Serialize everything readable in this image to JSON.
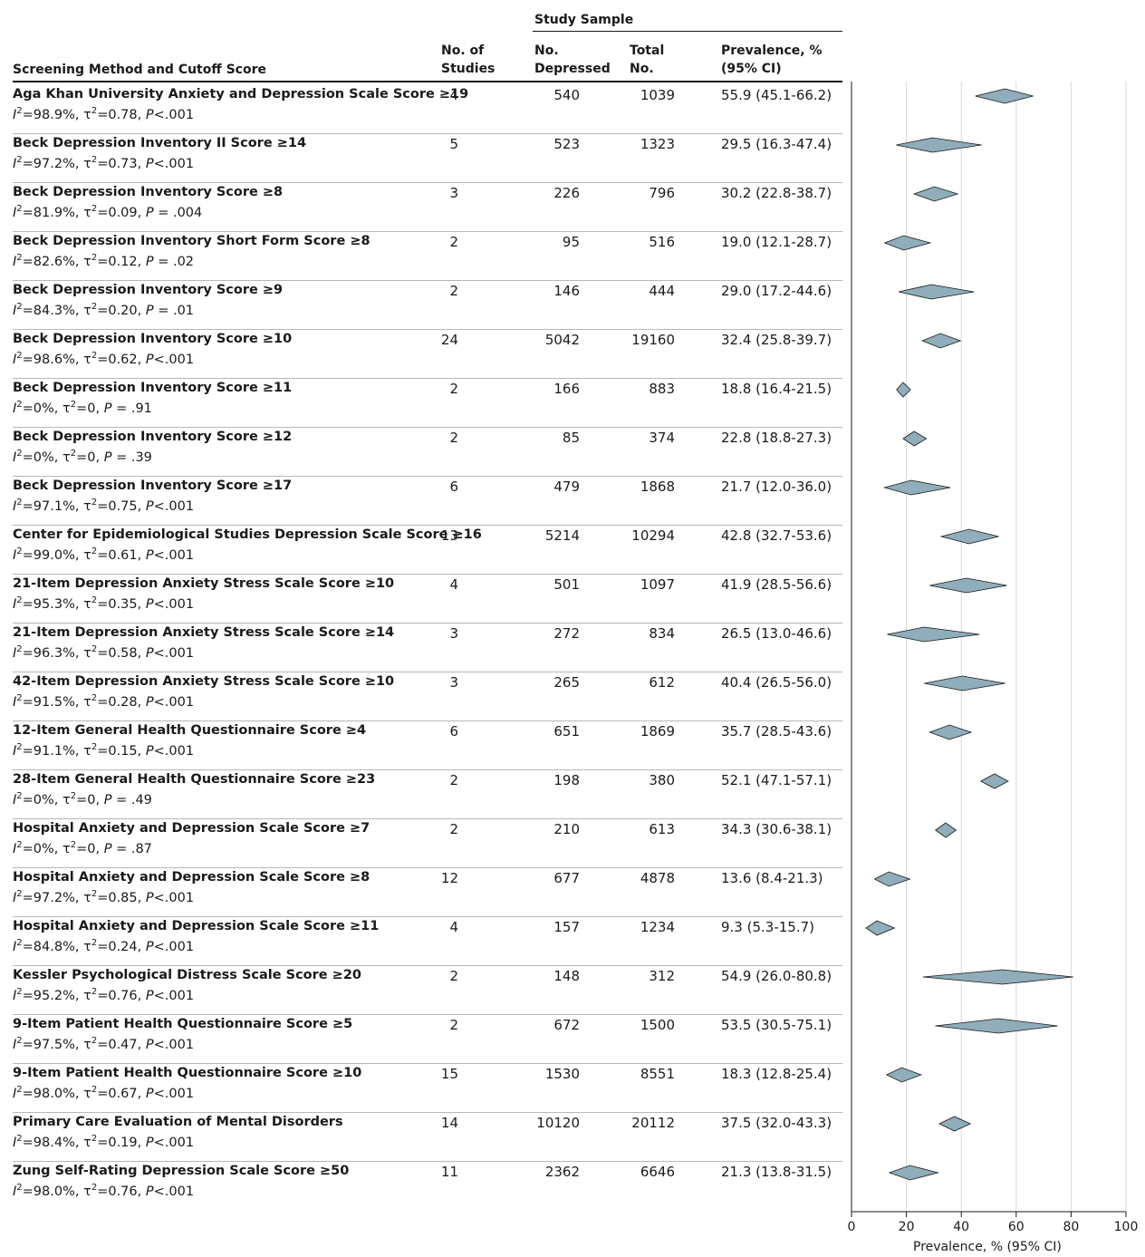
{
  "columns": {
    "group": "Study Sample",
    "method": "Screening Method and Cutoff Score",
    "studies": [
      "No. of",
      "Studies"
    ],
    "depressed": [
      "No.",
      "Depressed"
    ],
    "total": [
      "Total",
      "No."
    ],
    "prevalence": [
      "Prevalence, %",
      "(95% CI)"
    ]
  },
  "chart_data": {
    "type": "forest",
    "xlabel": "Prevalence, % (95% CI)",
    "xlim": [
      0,
      100
    ],
    "xticks": [
      "0",
      "20",
      "40",
      "60",
      "80",
      "100"
    ],
    "grid": "vertical",
    "rows": [
      {
        "label": "Aga Khan University Anxiety and Depression Scale Score ≥19",
        "stat": "I²=98.9%, τ²=0.78, P<.001",
        "studies": "4",
        "depressed": "540",
        "total": "1039",
        "ci_text": "55.9 (45.1-66.2)",
        "est": 55.9,
        "lo": 45.1,
        "hi": 66.2
      },
      {
        "label": "Beck Depression Inventory II Score ≥14",
        "stat": "I²=97.2%, τ²=0.73, P<.001",
        "studies": "5",
        "depressed": "523",
        "total": "1323",
        "ci_text": "29.5 (16.3-47.4)",
        "est": 29.5,
        "lo": 16.3,
        "hi": 47.4
      },
      {
        "label": "Beck Depression Inventory Score ≥8",
        "stat": "I²=81.9%, τ²=0.09, P = .004",
        "studies": "3",
        "depressed": "226",
        "total": "796",
        "ci_text": "30.2 (22.8-38.7)",
        "est": 30.2,
        "lo": 22.8,
        "hi": 38.7
      },
      {
        "label": "Beck Depression Inventory Short Form Score ≥8",
        "stat": "I²=82.6%, τ²=0.12, P = .02",
        "studies": "2",
        "depressed": "95",
        "total": "516",
        "ci_text": "19.0 (12.1-28.7)",
        "est": 19.0,
        "lo": 12.1,
        "hi": 28.7
      },
      {
        "label": "Beck Depression Inventory Score ≥9",
        "stat": "I²=84.3%, τ²=0.20, P = .01",
        "studies": "2",
        "depressed": "146",
        "total": "444",
        "ci_text": "29.0 (17.2-44.6)",
        "est": 29.0,
        "lo": 17.2,
        "hi": 44.6
      },
      {
        "label": "Beck Depression Inventory Score ≥10",
        "stat": "I²=98.6%, τ²=0.62, P<.001",
        "studies": "24",
        "depressed": "5042",
        "total": "19160",
        "ci_text": "32.4 (25.8-39.7)",
        "est": 32.4,
        "lo": 25.8,
        "hi": 39.7
      },
      {
        "label": "Beck Depression Inventory Score ≥11",
        "stat": "I²=0%, τ²=0, P = .91",
        "studies": "2",
        "depressed": "166",
        "total": "883",
        "ci_text": "18.8 (16.4-21.5)",
        "est": 18.8,
        "lo": 16.4,
        "hi": 21.5
      },
      {
        "label": "Beck Depression Inventory Score ≥12",
        "stat": "I²=0%, τ²=0, P = .39",
        "studies": "2",
        "depressed": "85",
        "total": "374",
        "ci_text": "22.8 (18.8-27.3)",
        "est": 22.8,
        "lo": 18.8,
        "hi": 27.3
      },
      {
        "label": "Beck Depression Inventory Score ≥17",
        "stat": "I²=97.1%, τ²=0.75, P<.001",
        "studies": "6",
        "depressed": "479",
        "total": "1868",
        "ci_text": "21.7 (12.0-36.0)",
        "est": 21.7,
        "lo": 12.0,
        "hi": 36.0
      },
      {
        "label": "Center for Epidemiological Studies Depression Scale Score ≥16",
        "stat": "I²=99.0%, τ²=0.61, P<.001",
        "studies": "13",
        "depressed": "5214",
        "total": "10294",
        "ci_text": "42.8 (32.7-53.6)",
        "est": 42.8,
        "lo": 32.7,
        "hi": 53.6
      },
      {
        "label": "21-Item Depression Anxiety Stress Scale Score ≥10",
        "stat": "I²=95.3%, τ²=0.35, P<.001",
        "studies": "4",
        "depressed": "501",
        "total": "1097",
        "ci_text": "41.9 (28.5-56.6)",
        "est": 41.9,
        "lo": 28.5,
        "hi": 56.6
      },
      {
        "label": "21-Item Depression Anxiety Stress Scale Score ≥14",
        "stat": "I²=96.3%, τ²=0.58, P<.001",
        "studies": "3",
        "depressed": "272",
        "total": "834",
        "ci_text": "26.5 (13.0-46.6)",
        "est": 26.5,
        "lo": 13.0,
        "hi": 46.6
      },
      {
        "label": "42-Item Depression Anxiety Stress Scale Score ≥10",
        "stat": "I²=91.5%, τ²=0.28, P<.001",
        "studies": "3",
        "depressed": "265",
        "total": "612",
        "ci_text": "40.4 (26.5-56.0)",
        "est": 40.4,
        "lo": 26.5,
        "hi": 56.0
      },
      {
        "label": "12-Item General Health Questionnaire Score ≥4",
        "stat": "I²=91.1%, τ²=0.15, P<.001",
        "studies": "6",
        "depressed": "651",
        "total": "1869",
        "ci_text": "35.7 (28.5-43.6)",
        "est": 35.7,
        "lo": 28.5,
        "hi": 43.6
      },
      {
        "label": "28-Item General Health Questionnaire Score ≥23",
        "stat": "I²=0%, τ²=0, P = .49",
        "studies": "2",
        "depressed": "198",
        "total": "380",
        "ci_text": "52.1 (47.1-57.1)",
        "est": 52.1,
        "lo": 47.1,
        "hi": 57.1
      },
      {
        "label": "Hospital Anxiety and Depression Scale Score ≥7",
        "stat": "I²=0%, τ²=0, P = .87",
        "studies": "2",
        "depressed": "210",
        "total": "613",
        "ci_text": "34.3 (30.6-38.1)",
        "est": 34.3,
        "lo": 30.6,
        "hi": 38.1
      },
      {
        "label": "Hospital Anxiety and Depression Scale Score ≥8",
        "stat": "I²=97.2%, τ²=0.85, P<.001",
        "studies": "12",
        "depressed": "677",
        "total": "4878",
        "ci_text": "13.6 (8.4-21.3)",
        "est": 13.6,
        "lo": 8.4,
        "hi": 21.3
      },
      {
        "label": "Hospital Anxiety and Depression Scale Score ≥11",
        "stat": "I²=84.8%, τ²=0.24, P<.001",
        "studies": "4",
        "depressed": "157",
        "total": "1234",
        "ci_text": "9.3 (5.3-15.7)",
        "est": 9.3,
        "lo": 5.3,
        "hi": 15.7
      },
      {
        "label": "Kessler Psychological Distress Scale Score ≥20",
        "stat": "I²=95.2%, τ²=0.76, P<.001",
        "studies": "2",
        "depressed": "148",
        "total": "312",
        "ci_text": "54.9 (26.0-80.8)",
        "est": 54.9,
        "lo": 26.0,
        "hi": 80.8
      },
      {
        "label": "9-Item Patient Health Questionnaire Score ≥5",
        "stat": "I²=97.5%, τ²=0.47, P<.001",
        "studies": "2",
        "depressed": "672",
        "total": "1500",
        "ci_text": "53.5 (30.5-75.1)",
        "est": 53.5,
        "lo": 30.5,
        "hi": 75.1
      },
      {
        "label": "9-Item Patient Health Questionnaire Score ≥10",
        "stat": "I²=98.0%, τ²=0.67, P<.001",
        "studies": "15",
        "depressed": "1530",
        "total": "8551",
        "ci_text": "18.3 (12.8-25.4)",
        "est": 18.3,
        "lo": 12.8,
        "hi": 25.4
      },
      {
        "label": "Primary Care Evaluation of Mental Disorders",
        "stat": "I²=98.4%, τ²=0.19, P<.001",
        "studies": "14",
        "depressed": "10120",
        "total": "20112",
        "ci_text": "37.5 (32.0-43.3)",
        "est": 37.5,
        "lo": 32.0,
        "hi": 43.3
      },
      {
        "label": "Zung Self-Rating Depression Scale Score ≥50",
        "stat": "I²=98.0%, τ²=0.76, P<.001",
        "studies": "11",
        "depressed": "2362",
        "total": "6646",
        "ci_text": "21.3 (13.8-31.5)",
        "est": 21.3,
        "lo": 13.8,
        "hi": 31.5
      }
    ]
  },
  "colors": {
    "diamond_fill": "#8fadba",
    "diamond_stroke": "#1a1a1a",
    "grid": "#d9d9d9",
    "separator": "#b8b8b8"
  }
}
